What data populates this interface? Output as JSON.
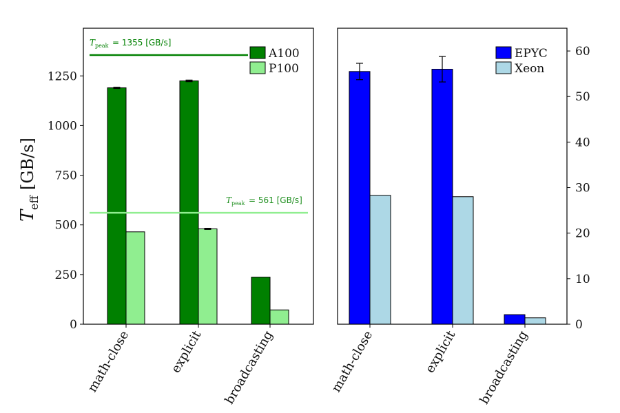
{
  "chart_data": [
    {
      "type": "bar",
      "ylabel_main": "T",
      "ylabel_sub": "eff",
      "ylabel_unit": "[GB/s]",
      "categories": [
        "math-close",
        "explicit",
        "broadcasting"
      ],
      "ylim": [
        0,
        1490
      ],
      "yticks": [
        0,
        250,
        500,
        750,
        1000,
        1250
      ],
      "series": [
        {
          "name": "A100",
          "color": "#008000",
          "values": [
            1190,
            1225,
            237
          ],
          "errors": [
            3,
            4,
            0
          ]
        },
        {
          "name": "P100",
          "color": "#90ee90",
          "values": [
            465,
            480,
            72
          ],
          "errors": [
            0,
            3,
            0
          ]
        }
      ],
      "reference_lines": [
        {
          "label_main": "T",
          "label_sub": "peak",
          "label_value": "= 1355 [GB/s]",
          "value": 1355,
          "color": "#008000"
        },
        {
          "label_main": "T",
          "label_sub": "peak",
          "label_value": "= 561 [GB/s]",
          "value": 561,
          "color": "#90ee90"
        }
      ],
      "legend": "top-right"
    },
    {
      "type": "bar",
      "categories": [
        "math-close",
        "explicit",
        "broadcasting"
      ],
      "ylim": [
        0,
        65
      ],
      "yticks": [
        0,
        10,
        20,
        30,
        40,
        50,
        60
      ],
      "yaxis_side": "right",
      "series": [
        {
          "name": "EPYC",
          "color": "#0000ff",
          "values": [
            55.5,
            56,
            2.1
          ],
          "errors": [
            1.8,
            2.8,
            0
          ]
        },
        {
          "name": "Xeon",
          "color": "#add8e6",
          "values": [
            28.3,
            28,
            1.4
          ],
          "errors": [
            0,
            0,
            0
          ]
        }
      ],
      "legend": "top-right"
    }
  ]
}
